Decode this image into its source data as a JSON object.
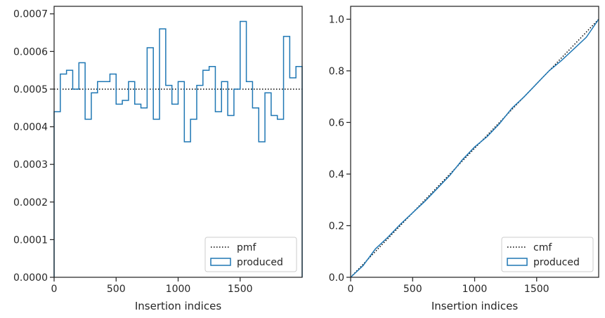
{
  "chart_data": [
    {
      "type": "histogram-step",
      "xlabel": "Insertion indices",
      "ylabel": "",
      "xlim": [
        0,
        2000
      ],
      "ylim": [
        0,
        0.00072
      ],
      "xticks": [
        0,
        500,
        1000,
        1500
      ],
      "xtick_labels": [
        "0",
        "500",
        "1000",
        "1500"
      ],
      "yticks": [
        0,
        0.0001,
        0.0002,
        0.0003,
        0.0004,
        0.0005,
        0.0006,
        0.0007
      ],
      "ytick_labels": [
        "0.0000",
        "0.0001",
        "0.0002",
        "0.0003",
        "0.0004",
        "0.0005",
        "0.0006",
        "0.0007"
      ],
      "legend_position": "lower-right",
      "legend": [
        {
          "label": "pmf",
          "style": "dotted",
          "color": "#000000"
        },
        {
          "label": "produced",
          "style": "step",
          "color": "#1f77b4"
        }
      ],
      "pmf_value": 0.0005,
      "bin_edges": [
        0,
        50,
        100,
        150,
        200,
        250,
        300,
        350,
        400,
        450,
        500,
        550,
        600,
        650,
        700,
        750,
        800,
        850,
        900,
        950,
        1000,
        1050,
        1100,
        1150,
        1200,
        1250,
        1300,
        1350,
        1400,
        1450,
        1500,
        1550,
        1600,
        1650,
        1700,
        1750,
        1800,
        1850,
        1900,
        1950,
        2000
      ],
      "values": [
        0.00044,
        0.00054,
        0.00055,
        0.0005,
        0.00057,
        0.00042,
        0.00049,
        0.00052,
        0.00052,
        0.00054,
        0.00046,
        0.00047,
        0.00052,
        0.00046,
        0.00045,
        0.00061,
        0.00042,
        0.00066,
        0.00051,
        0.00046,
        0.00052,
        0.00036,
        0.00042,
        0.00051,
        0.00055,
        0.00056,
        0.00044,
        0.00052,
        0.00043,
        0.0005,
        0.00068,
        0.00052,
        0.00045,
        0.00036,
        0.00049,
        0.00043,
        0.00042,
        0.00064,
        0.00053,
        0.00056
      ]
    },
    {
      "type": "cdf-step",
      "xlabel": "Insertion indices",
      "ylabel": "",
      "xlim": [
        0,
        2000
      ],
      "ylim": [
        0,
        1.05
      ],
      "xticks": [
        0,
        500,
        1000,
        1500
      ],
      "xtick_labels": [
        "0",
        "500",
        "1000",
        "1500"
      ],
      "yticks": [
        0,
        0.2,
        0.4,
        0.6,
        0.8,
        1.0
      ],
      "ytick_labels": [
        "0.0",
        "0.2",
        "0.4",
        "0.6",
        "0.8",
        "1.0"
      ],
      "legend_position": "lower-right",
      "legend": [
        {
          "label": "cmf",
          "style": "dotted",
          "color": "#000000"
        },
        {
          "label": "produced",
          "style": "step",
          "color": "#1f77b4"
        }
      ],
      "cmf_line": [
        [
          0,
          0
        ],
        [
          2000,
          1
        ]
      ],
      "x": [
        0,
        100,
        200,
        300,
        400,
        500,
        600,
        700,
        800,
        900,
        1000,
        1100,
        1200,
        1300,
        1400,
        1500,
        1600,
        1700,
        1800,
        1900,
        2000
      ],
      "y": [
        0,
        0.045,
        0.11,
        0.155,
        0.205,
        0.25,
        0.295,
        0.345,
        0.395,
        0.455,
        0.505,
        0.545,
        0.595,
        0.655,
        0.7,
        0.75,
        0.8,
        0.84,
        0.885,
        0.93,
        1.0
      ]
    }
  ],
  "colors": {
    "series": "#1f77b4",
    "reference": "#000000",
    "axes": "#262626"
  }
}
